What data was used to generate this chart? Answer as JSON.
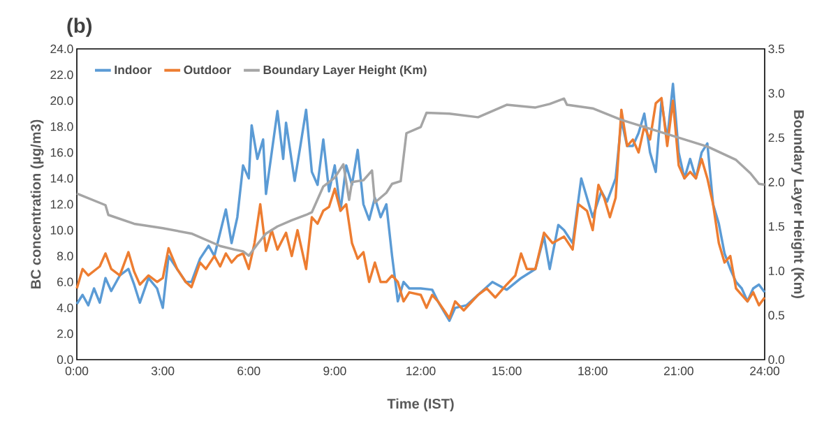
{
  "chart_data": {
    "type": "line",
    "title": "(b)",
    "xlabel": "Time (IST)",
    "ylabel": "BC concentration (µg/m3)",
    "y2label": "Boundary Layer Height (Km)",
    "legend": "top left",
    "line_style": "solid",
    "xlim": [
      0,
      24
    ],
    "xticks": [
      {
        "value": 0,
        "label": "0:00"
      },
      {
        "value": 3,
        "label": "3:00"
      },
      {
        "value": 6,
        "label": "6:00"
      },
      {
        "value": 9,
        "label": "9:00"
      },
      {
        "value": 12,
        "label": "12:00"
      },
      {
        "value": 15,
        "label": "15:00"
      },
      {
        "value": 18,
        "label": "18:00"
      },
      {
        "value": 21,
        "label": "21:00"
      },
      {
        "value": 24,
        "label": "24:00"
      }
    ],
    "ylim": [
      0,
      24
    ],
    "yticks": [
      {
        "value": 0,
        "label": "0.0"
      },
      {
        "value": 2,
        "label": "2.0"
      },
      {
        "value": 4,
        "label": "4.0"
      },
      {
        "value": 6,
        "label": "6.0"
      },
      {
        "value": 8,
        "label": "8.0"
      },
      {
        "value": 10,
        "label": "10.0"
      },
      {
        "value": 12,
        "label": "12.0"
      },
      {
        "value": 14,
        "label": "14.0"
      },
      {
        "value": 16,
        "label": "16.0"
      },
      {
        "value": 18,
        "label": "18.0"
      },
      {
        "value": 20,
        "label": "20.0"
      },
      {
        "value": 22,
        "label": "22.0"
      },
      {
        "value": 24,
        "label": "24.0"
      }
    ],
    "y2lim": [
      0,
      3.5
    ],
    "y2ticks": [
      {
        "value": 0,
        "label": "0.0"
      },
      {
        "value": 0.5,
        "label": "0.5"
      },
      {
        "value": 1,
        "label": "1.0"
      },
      {
        "value": 1.5,
        "label": "1.5"
      },
      {
        "value": 2,
        "label": "2.0"
      },
      {
        "value": 2.5,
        "label": "2.5"
      },
      {
        "value": 3,
        "label": "3.0"
      },
      {
        "value": 3.5,
        "label": "3.5"
      }
    ],
    "series": [
      {
        "name": "Indoor",
        "color": "#5b9bd5",
        "x": [
          0,
          0.2,
          0.4,
          0.6,
          0.8,
          1.0,
          1.2,
          1.5,
          1.8,
          2.0,
          2.2,
          2.5,
          2.8,
          3.0,
          3.2,
          3.5,
          3.8,
          4.0,
          4.3,
          4.6,
          4.8,
          5.0,
          5.2,
          5.4,
          5.6,
          5.8,
          6.0,
          6.1,
          6.3,
          6.5,
          6.6,
          6.8,
          7.0,
          7.2,
          7.3,
          7.6,
          7.8,
          8.0,
          8.2,
          8.4,
          8.6,
          8.8,
          9.0,
          9.2,
          9.4,
          9.6,
          9.8,
          10.0,
          10.2,
          10.4,
          10.6,
          10.8,
          11.0,
          11.2,
          11.4,
          11.6,
          12.0,
          12.4,
          12.6,
          13.0,
          13.2,
          13.6,
          14.0,
          14.5,
          15.0,
          15.5,
          16.0,
          16.3,
          16.5,
          16.8,
          17.0,
          17.3,
          17.6,
          18.0,
          18.3,
          18.5,
          18.8,
          19.0,
          19.2,
          19.4,
          19.6,
          19.8,
          20.0,
          20.2,
          20.4,
          20.6,
          20.8,
          21.0,
          21.2,
          21.4,
          21.6,
          21.8,
          22.0,
          22.2,
          22.4,
          22.6,
          22.8,
          23.0,
          23.2,
          23.4,
          23.6,
          23.8,
          24.0
        ],
        "values": [
          4.3,
          5.0,
          4.2,
          5.5,
          4.4,
          6.3,
          5.3,
          6.5,
          7.0,
          5.8,
          4.4,
          6.3,
          5.5,
          4.0,
          8.0,
          7.0,
          6.0,
          6.0,
          7.8,
          8.8,
          8.0,
          9.8,
          11.6,
          9.0,
          11.0,
          15.0,
          14.0,
          18.1,
          15.5,
          17.0,
          12.8,
          16.0,
          19.2,
          15.5,
          18.3,
          13.8,
          16.5,
          19.3,
          14.5,
          13.5,
          17.0,
          13.0,
          15.0,
          11.5,
          15.0,
          13.5,
          16.2,
          12.0,
          10.8,
          12.5,
          11.0,
          12.0,
          8.0,
          4.5,
          6.0,
          5.5,
          5.5,
          5.4,
          4.5,
          3.0,
          4.0,
          4.2,
          5.0,
          6.0,
          5.4,
          6.3,
          7.0,
          9.5,
          7.0,
          10.4,
          10.0,
          9.0,
          14.0,
          11.0,
          13.0,
          12.2,
          14.0,
          18.5,
          16.5,
          16.5,
          17.5,
          19.0,
          16.0,
          14.5,
          20.0,
          17.0,
          21.3,
          16.0,
          14.0,
          15.5,
          14.0,
          16.0,
          16.7,
          12.0,
          10.5,
          8.2,
          7.0,
          6.0,
          5.5,
          4.5,
          5.5,
          5.8,
          5.2
        ]
      },
      {
        "name": "Outdoor",
        "color": "#ed7d31",
        "x": [
          0,
          0.2,
          0.4,
          0.8,
          1.0,
          1.2,
          1.5,
          1.8,
          2.0,
          2.2,
          2.5,
          2.8,
          3.0,
          3.2,
          3.5,
          3.8,
          4.0,
          4.3,
          4.5,
          4.8,
          5.0,
          5.2,
          5.4,
          5.6,
          5.8,
          6.0,
          6.2,
          6.4,
          6.6,
          6.8,
          7.0,
          7.3,
          7.5,
          7.7,
          8.0,
          8.2,
          8.4,
          8.6,
          8.8,
          9.0,
          9.2,
          9.4,
          9.6,
          9.8,
          10.0,
          10.2,
          10.4,
          10.6,
          10.8,
          11.0,
          11.2,
          11.4,
          11.6,
          12.0,
          12.2,
          12.4,
          12.6,
          13.0,
          13.2,
          13.5,
          14.0,
          14.3,
          14.6,
          15.0,
          15.3,
          15.5,
          15.7,
          16.0,
          16.3,
          16.6,
          17.0,
          17.3,
          17.5,
          17.8,
          18.0,
          18.2,
          18.4,
          18.6,
          18.8,
          19.0,
          19.2,
          19.4,
          19.6,
          19.8,
          20.0,
          20.2,
          20.4,
          20.6,
          20.8,
          21.0,
          21.2,
          21.4,
          21.6,
          21.8,
          22.0,
          22.2,
          22.4,
          22.6,
          22.8,
          23.0,
          23.2,
          23.4,
          23.6,
          23.8,
          24.0
        ],
        "values": [
          5.5,
          7.0,
          6.5,
          7.2,
          8.2,
          7.0,
          6.5,
          8.3,
          6.8,
          5.8,
          6.5,
          6.0,
          6.3,
          8.6,
          7.0,
          6.0,
          5.6,
          7.5,
          7.0,
          8.0,
          7.2,
          8.2,
          7.5,
          8.0,
          8.2,
          7.0,
          9.0,
          12.0,
          8.4,
          10.0,
          8.5,
          9.8,
          8.0,
          10.0,
          7.0,
          11.0,
          10.5,
          11.5,
          11.8,
          13.2,
          11.5,
          12.0,
          9.0,
          7.8,
          8.3,
          6.0,
          7.5,
          6.0,
          6.0,
          6.5,
          6.0,
          4.5,
          5.2,
          5.0,
          4.0,
          5.0,
          4.5,
          3.2,
          4.5,
          3.8,
          5.0,
          5.5,
          4.8,
          5.8,
          6.5,
          8.2,
          7.0,
          7.0,
          9.8,
          9.0,
          9.5,
          8.5,
          12.0,
          11.5,
          10.0,
          13.5,
          12.5,
          11.0,
          12.5,
          19.3,
          16.5,
          17.0,
          16.0,
          18.0,
          17.0,
          19.8,
          20.2,
          16.5,
          20.0,
          15.0,
          14.0,
          14.5,
          14.0,
          15.5,
          14.0,
          12.0,
          9.0,
          7.5,
          8.0,
          5.5,
          5.0,
          4.5,
          5.2,
          4.2,
          4.8
        ]
      },
      {
        "name": "Boundary Layer Height (Km)",
        "color": "#a5a5a5",
        "axis": "y2",
        "x": [
          0,
          1.0,
          1.1,
          2.0,
          3.0,
          4.0,
          5.0,
          5.5,
          5.8,
          6.0,
          6.3,
          6.6,
          7.0,
          7.5,
          8.0,
          8.2,
          8.6,
          9.0,
          9.3,
          9.5,
          9.6,
          10.0,
          10.3,
          10.4,
          10.8,
          11.0,
          11.3,
          11.5,
          12.0,
          12.2,
          13.0,
          14.0,
          15.0,
          16.0,
          16.5,
          17.0,
          17.1,
          18.0,
          19.0,
          20.0,
          21.0,
          22.0,
          23.0,
          23.5,
          23.8,
          24.0
        ],
        "values": [
          1.87,
          1.74,
          1.63,
          1.53,
          1.48,
          1.42,
          1.28,
          1.24,
          1.22,
          1.17,
          1.3,
          1.42,
          1.5,
          1.57,
          1.63,
          1.66,
          1.95,
          2.05,
          2.2,
          1.8,
          2.0,
          2.02,
          2.13,
          1.77,
          1.88,
          1.98,
          2.01,
          2.55,
          2.62,
          2.78,
          2.77,
          2.73,
          2.87,
          2.84,
          2.88,
          2.94,
          2.87,
          2.83,
          2.7,
          2.6,
          2.5,
          2.4,
          2.25,
          2.1,
          1.98,
          1.97
        ]
      }
    ]
  }
}
